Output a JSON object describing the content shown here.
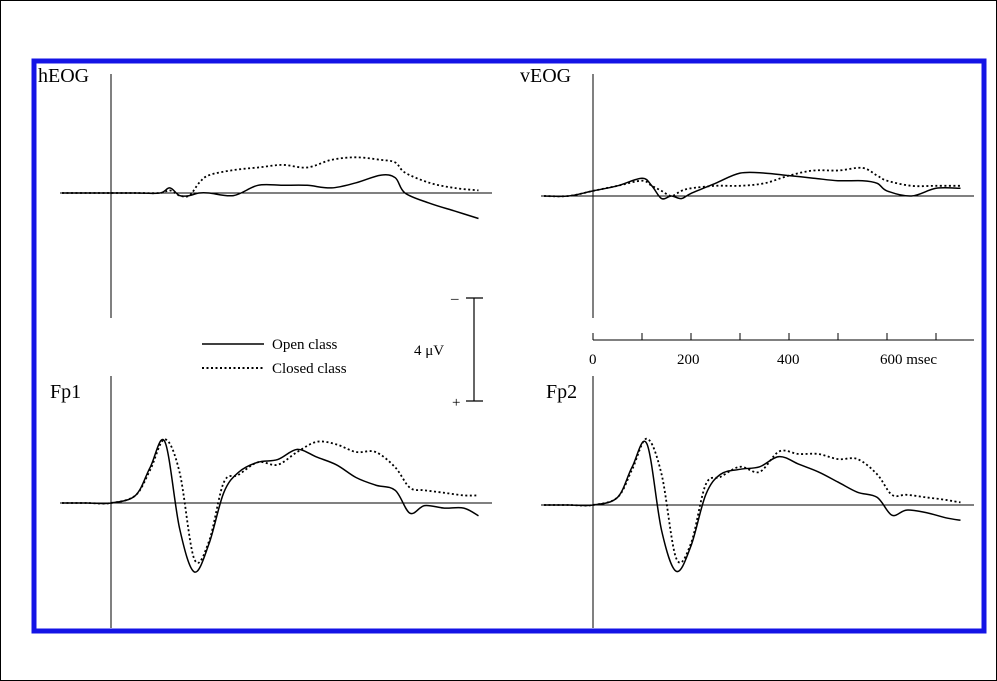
{
  "legend": {
    "entries": [
      {
        "label": "Open class",
        "style": "solid"
      },
      {
        "label": "Closed class",
        "style": "dotted"
      }
    ]
  },
  "scale_bar": {
    "label": "4 μV",
    "top_sign": "–",
    "bottom_sign": "+",
    "microvolts": 4
  },
  "time_axis": {
    "ticks": [
      "0",
      "200",
      "400",
      "600 msec"
    ]
  },
  "colors": {
    "frame": "#1414e6",
    "trace": "#000000"
  },
  "chart_data": [
    {
      "type": "line",
      "title": "hEOG",
      "x_unit": "msec",
      "y_unit": "μV",
      "polarity": "negative up",
      "series": [
        {
          "name": "Open class",
          "style": "solid",
          "x": [
            -100,
            -50,
            0,
            50,
            100,
            120,
            140,
            160,
            180,
            200,
            250,
            300,
            350,
            400,
            450,
            500,
            550,
            580,
            600,
            650,
            700,
            750
          ],
          "values": [
            0,
            0,
            0,
            0,
            0,
            -0.2,
            0.1,
            0.1,
            0,
            0,
            0.1,
            -0.3,
            -0.3,
            -0.3,
            -0.2,
            -0.4,
            -0.7,
            -0.6,
            0,
            0.4,
            0.7,
            1.0
          ]
        },
        {
          "name": "Closed class",
          "style": "dotted",
          "x": [
            -100,
            -50,
            0,
            50,
            100,
            120,
            140,
            160,
            180,
            200,
            250,
            300,
            350,
            400,
            450,
            500,
            550,
            580,
            600,
            650,
            700,
            750
          ],
          "values": [
            0,
            0,
            0,
            0,
            0,
            -0.1,
            0.1,
            0.1,
            -0.4,
            -0.7,
            -0.9,
            -1.0,
            -1.1,
            -1.0,
            -1.3,
            -1.4,
            -1.3,
            -1.2,
            -0.8,
            -0.4,
            -0.2,
            -0.1
          ]
        }
      ]
    },
    {
      "type": "line",
      "title": "vEOG",
      "x_unit": "msec",
      "y_unit": "μV",
      "polarity": "negative up",
      "series": [
        {
          "name": "Open class",
          "style": "solid",
          "x": [
            -100,
            -50,
            0,
            50,
            100,
            120,
            140,
            160,
            180,
            200,
            250,
            300,
            350,
            400,
            450,
            500,
            550,
            580,
            600,
            650,
            700,
            750
          ],
          "values": [
            0,
            0,
            -0.2,
            -0.4,
            -0.7,
            -0.4,
            0.1,
            0,
            0.1,
            -0.1,
            -0.5,
            -0.9,
            -0.9,
            -0.8,
            -0.7,
            -0.6,
            -0.6,
            -0.5,
            -0.2,
            0,
            -0.3,
            -0.3
          ]
        },
        {
          "name": "Closed class",
          "style": "dotted",
          "x": [
            -100,
            -50,
            0,
            50,
            100,
            120,
            140,
            160,
            180,
            200,
            250,
            300,
            350,
            400,
            450,
            500,
            550,
            580,
            600,
            650,
            700,
            750
          ],
          "values": [
            0,
            0,
            -0.2,
            -0.4,
            -0.6,
            -0.4,
            -0.2,
            0,
            -0.2,
            -0.3,
            -0.4,
            -0.4,
            -0.5,
            -0.8,
            -1.0,
            -1.0,
            -1.1,
            -0.8,
            -0.6,
            -0.4,
            -0.4,
            -0.4
          ]
        }
      ]
    },
    {
      "type": "line",
      "title": "Fp1",
      "x_unit": "msec",
      "y_unit": "μV",
      "polarity": "negative up",
      "series": [
        {
          "name": "Open class",
          "style": "solid",
          "x": [
            -100,
            -50,
            0,
            50,
            80,
            110,
            140,
            170,
            200,
            230,
            260,
            300,
            340,
            380,
            420,
            460,
            500,
            540,
            580,
            610,
            640,
            680,
            720,
            750
          ],
          "values": [
            0,
            0,
            0,
            -0.3,
            -1.4,
            -2.4,
            1.0,
            2.7,
            1.6,
            -0.4,
            -1.2,
            -1.6,
            -1.7,
            -2.1,
            -1.8,
            -1.5,
            -1.0,
            -0.7,
            -0.5,
            0.4,
            0.1,
            0.2,
            0.2,
            0.5
          ]
        },
        {
          "name": "Closed class",
          "style": "dotted",
          "x": [
            -100,
            -50,
            0,
            50,
            80,
            110,
            140,
            170,
            200,
            230,
            260,
            300,
            340,
            380,
            420,
            460,
            500,
            540,
            580,
            610,
            640,
            680,
            720,
            750
          ],
          "values": [
            0,
            0,
            0,
            -0.3,
            -1.3,
            -2.5,
            -1.2,
            2.2,
            1.5,
            -0.8,
            -1.1,
            -1.6,
            -1.5,
            -2.0,
            -2.4,
            -2.3,
            -2.0,
            -2.0,
            -1.4,
            -0.6,
            -0.5,
            -0.4,
            -0.3,
            -0.3
          ]
        }
      ]
    },
    {
      "type": "line",
      "title": "Fp2",
      "x_unit": "msec",
      "y_unit": "μV",
      "polarity": "negative up",
      "series": [
        {
          "name": "Open class",
          "style": "solid",
          "x": [
            -100,
            -50,
            0,
            50,
            80,
            110,
            140,
            170,
            200,
            230,
            260,
            300,
            340,
            380,
            420,
            460,
            500,
            540,
            580,
            610,
            640,
            680,
            720,
            750
          ],
          "values": [
            0,
            0,
            0,
            -0.3,
            -1.5,
            -2.4,
            1.0,
            2.6,
            1.6,
            -0.4,
            -1.2,
            -1.4,
            -1.5,
            -1.9,
            -1.6,
            -1.3,
            -0.9,
            -0.5,
            -0.3,
            0.4,
            0.2,
            0.3,
            0.5,
            0.6
          ]
        },
        {
          "name": "Closed class",
          "style": "dotted",
          "x": [
            -100,
            -50,
            0,
            50,
            80,
            110,
            140,
            170,
            200,
            230,
            260,
            300,
            340,
            380,
            420,
            460,
            500,
            540,
            580,
            610,
            640,
            680,
            720,
            750
          ],
          "values": [
            0,
            0,
            0,
            -0.3,
            -1.4,
            -2.6,
            -1.2,
            2.1,
            1.5,
            -0.8,
            -1.1,
            -1.5,
            -1.3,
            -2.1,
            -2.0,
            -2.0,
            -1.8,
            -1.8,
            -1.2,
            -0.4,
            -0.4,
            -0.3,
            -0.2,
            -0.1
          ]
        }
      ]
    }
  ]
}
